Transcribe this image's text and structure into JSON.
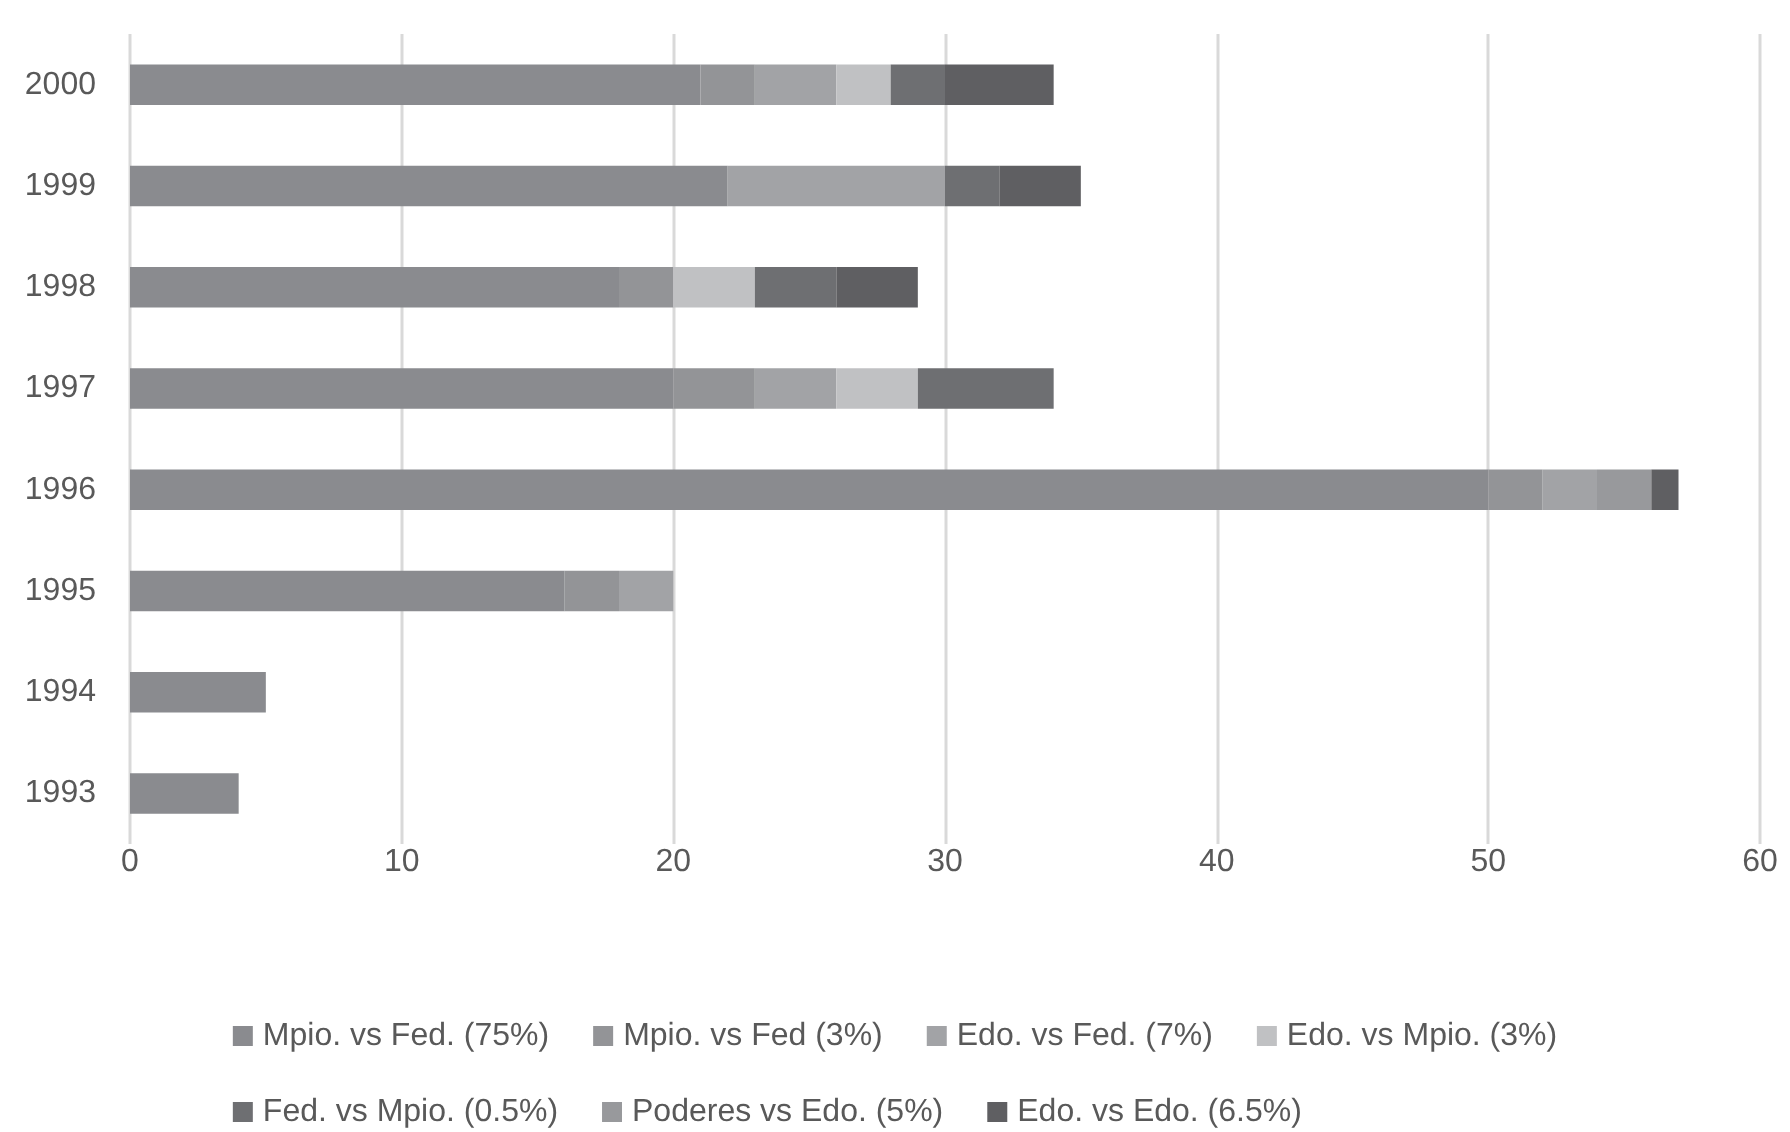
{
  "chart_data": {
    "type": "bar",
    "orientation": "horizontal",
    "stacked": true,
    "categories": [
      "2000",
      "1999",
      "1998",
      "1997",
      "1996",
      "1995",
      "1994",
      "1993"
    ],
    "series": [
      {
        "name": "Mpio. vs Fed. (75%)",
        "color": "#8a8b8f",
        "values": [
          21,
          22,
          18,
          20,
          50,
          16,
          5,
          4
        ]
      },
      {
        "name": "Mpio. vs Fed (3%)",
        "color": "#939497",
        "values": [
          2,
          0,
          2,
          3,
          2,
          2,
          0,
          0
        ]
      },
      {
        "name": "Edo. vs Fed. (7%)",
        "color": "#a2a3a6",
        "values": [
          3,
          8,
          0,
          3,
          2,
          2,
          0,
          0
        ]
      },
      {
        "name": "Edo. vs Mpio. (3%)",
        "color": "#c0c1c3",
        "values": [
          2,
          0,
          3,
          3,
          0,
          0,
          0,
          0
        ]
      },
      {
        "name": "Fed. vs Mpio. (0.5%)",
        "color": "#6e6f72",
        "values": [
          2,
          2,
          3,
          5,
          0,
          0,
          0,
          0
        ]
      },
      {
        "name": "Poderes vs Edo. (5%)",
        "color": "#98999c",
        "values": [
          0,
          0,
          0,
          0,
          2,
          0,
          0,
          0
        ]
      },
      {
        "name": "Edo. vs Edo. (6.5%)",
        "color": "#5f5f62",
        "values": [
          4,
          3,
          3,
          0,
          1,
          0,
          0,
          0
        ]
      }
    ],
    "xlim": [
      0,
      60
    ],
    "xticks": [
      0,
      10,
      20,
      30,
      40,
      50,
      60
    ],
    "grid": "x",
    "legend": "bottom"
  }
}
